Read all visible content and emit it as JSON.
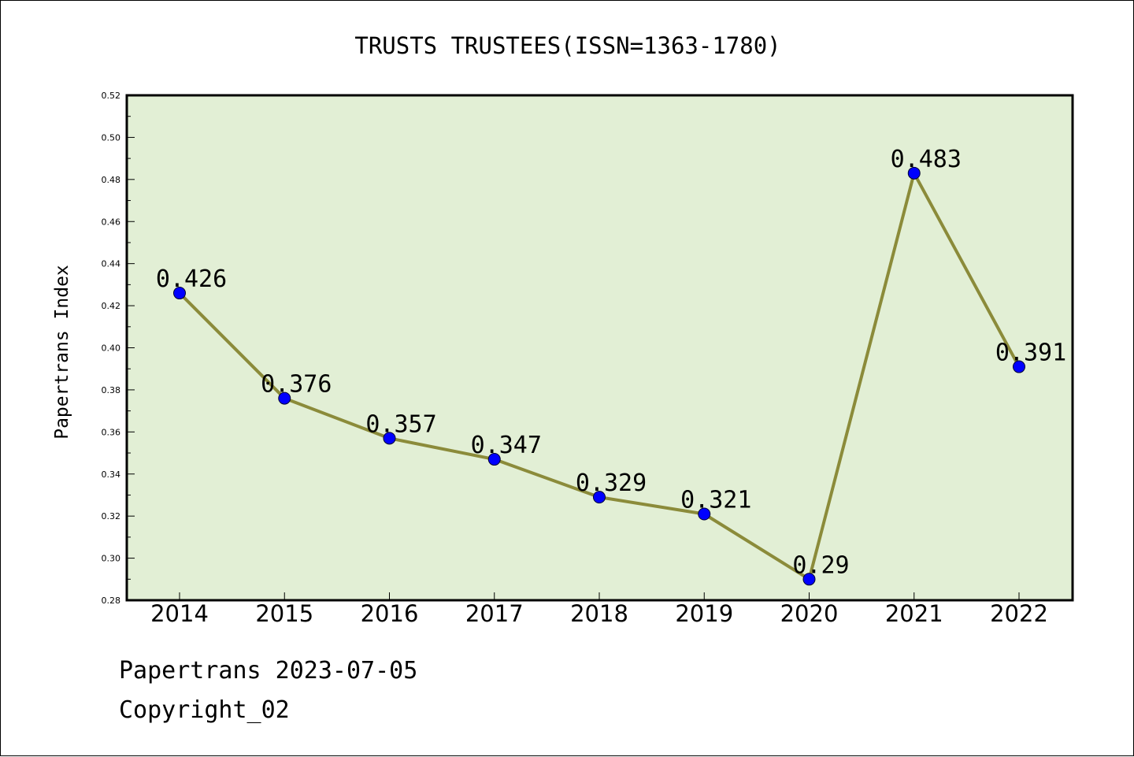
{
  "chart_data": {
    "type": "line",
    "title": "TRUSTS TRUSTEES(ISSN=1363-1780)",
    "ylabel": "Papertrans Index",
    "xlabel": "",
    "categories": [
      "2014",
      "2015",
      "2016",
      "2017",
      "2018",
      "2019",
      "2020",
      "2021",
      "2022"
    ],
    "series": [
      {
        "values": [
          0.426,
          0.376,
          0.357,
          0.347,
          0.329,
          0.321,
          0.29,
          0.483,
          0.391
        ]
      }
    ],
    "data_labels": [
      "0.426",
      "0.376",
      "0.357",
      "0.347",
      "0.329",
      "0.321",
      "0.29",
      "0.483",
      "0.391"
    ],
    "ylim": [
      0.28,
      0.52
    ],
    "yticks": [
      "0.28",
      "0.30",
      "0.32",
      "0.34",
      "0.36",
      "0.38",
      "0.40",
      "0.42",
      "0.44",
      "0.46",
      "0.48",
      "0.50",
      "0.52"
    ],
    "grid": false,
    "colors": {
      "plot_background": "#e2efd5",
      "line": "#8b8b3a",
      "marker": "#0000ff"
    }
  },
  "footer": {
    "line1": "Papertrans 2023-07-05",
    "line2": "Copyright_02"
  }
}
